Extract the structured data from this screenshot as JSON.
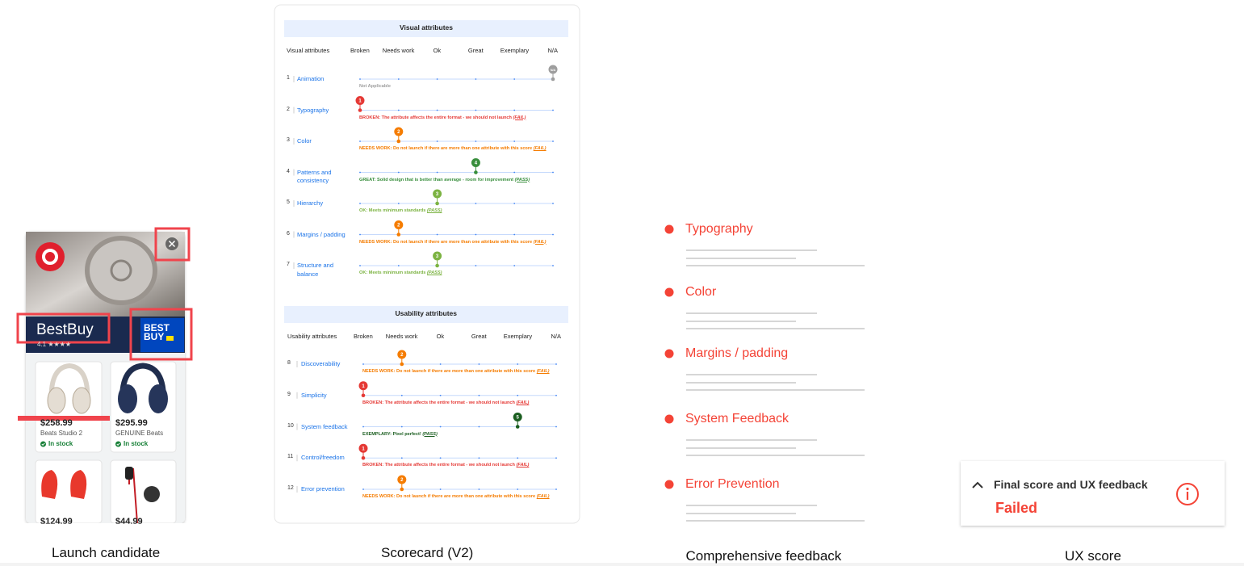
{
  "launch_candidate": {
    "caption": "Launch candidate",
    "brand": "BestBuy",
    "rating": "4.1 ★★★★",
    "logo": "BEST BUY",
    "products": [
      {
        "price": "$258.99",
        "name": "Beats Studio 2",
        "stock": "In stock"
      },
      {
        "price": "$295.99",
        "name": "GENUINE Beats",
        "stock": "In stock"
      },
      {
        "price": "$124.99"
      },
      {
        "price": "$44.99"
      }
    ]
  },
  "scorecard": {
    "caption": "Scorecard (V2)",
    "colors": [
      "#e53935",
      "#f57c00",
      "#7cb342",
      "#388e3c",
      "#1b5e20",
      "#9e9e9e"
    ],
    "sections": [
      {
        "title": "Visual attributes",
        "columns": [
          "Visual attributes",
          "Broken",
          "Needs work",
          "Ok",
          "Great",
          "Exemplary",
          "N/A"
        ],
        "rows": [
          {
            "number": "1",
            "name": "Animation",
            "score": "N/A",
            "note": "Not Applicable"
          },
          {
            "number": "2",
            "name": "Typography",
            "score": 1,
            "note": "BROKEN: The attribute affects the entire format - we should not launch",
            "verdict": "(FAIL)"
          },
          {
            "number": "3",
            "name": "Color",
            "score": 2,
            "note": "NEEDS WORK: Do not launch if there are more than one attribute with this score",
            "verdict": "(FAIL)"
          },
          {
            "number": "4",
            "name": "Patterns and consistency",
            "score": 4,
            "note": "GREAT: Solid design that is better than average - room for improvement",
            "verdict": "(PASS)"
          },
          {
            "number": "5",
            "name": "Hierarchy",
            "score": 3,
            "note": "OK: Meets minimum standards",
            "verdict": "(PASS)"
          },
          {
            "number": "6",
            "name": "Margins / padding",
            "score": 2,
            "note": "NEEDS WORK: Do not launch if there are more than one attribute with this score",
            "verdict": "(FAIL)"
          },
          {
            "number": "7",
            "name": "Structure and balance",
            "score": 3,
            "note": "OK: Meets minimum standards",
            "verdict": "(PASS)"
          }
        ]
      },
      {
        "title": "Usability attributes",
        "columns": [
          "Usability attributes",
          "Broken",
          "Needs work",
          "Ok",
          "Great",
          "Exemplary",
          "N/A"
        ],
        "rows": [
          {
            "number": "8",
            "name": "Discoverability",
            "score": 2,
            "note": "NEEDS WORK: Do not launch if there are more than one attribute with this score",
            "verdict": "(FAIL)"
          },
          {
            "number": "9",
            "name": "Simplicity",
            "score": 1,
            "note": "BROKEN: The attribute affects the entire format - we should not launch",
            "verdict": "(FAIL)"
          },
          {
            "number": "10",
            "name": "System feedback",
            "score": 5,
            "note": "EXEMPLARY: Pixel perfect!",
            "verdict": "(PASS)"
          },
          {
            "number": "11",
            "name": "Control/freedom",
            "score": 1,
            "note": "BROKEN: The attribute affects the entire format - we should not launch",
            "verdict": "(FAIL)"
          },
          {
            "number": "12",
            "name": "Error prevention",
            "score": 2,
            "note": "NEEDS WORK: Do not launch if there are more than one attribute with this score",
            "verdict": "(FAIL)"
          }
        ]
      }
    ]
  },
  "feedback": {
    "caption": "Comprehensive feedback",
    "items": [
      "Typography",
      "Color",
      "Margins / padding",
      "System Feedback",
      "Error Prevention"
    ]
  },
  "ux_score": {
    "caption": "UX score",
    "title": "Final score and UX feedback",
    "result": "Failed"
  }
}
